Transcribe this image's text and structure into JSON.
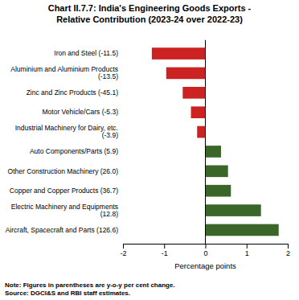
{
  "chart_data": {
    "type": "bar",
    "orientation": "horizontal",
    "title": "Chart II.7.7: India's Engineering Goods Exports -\nRelative Contribution (2023-24 over 2022-23)",
    "categories": [
      "Iron and Steel (-11.5)",
      "Aluminium and Aluminium Products\n(-13.5)",
      "Zinc and Zinc Products (-45.1)",
      "Motor Vehicle/Cars (-5.3)",
      "Industrial Machinery for Dairy, etc.\n(-3.9)",
      "Auto Components/Parts (5.9)",
      "Other Construction Machinery (26.0)",
      "Copper and Copper Products (36.7)",
      "Electric Machinery and Equipments\n(12.8)",
      "Aircraft, Spacecraft and Parts (126.6)"
    ],
    "values": [
      -1.3,
      -0.95,
      -0.55,
      -0.35,
      -0.2,
      0.38,
      0.55,
      0.62,
      1.35,
      1.78
    ],
    "colors": [
      "#cc2222",
      "#cc2222",
      "#cc2222",
      "#cc2222",
      "#cc2222",
      "#3a6629",
      "#3a6629",
      "#3a6629",
      "#3a6629",
      "#3a6629"
    ],
    "xlabel": "Percentage points",
    "xlim": [
      -2,
      2
    ],
    "xticks": [
      -2,
      -1,
      0,
      1,
      2
    ],
    "grid": false,
    "annotations": [
      "Note: Figures in parentheses are y-o-y per cent change.\nSource: DGCI&S and RBI staff estimates."
    ]
  }
}
